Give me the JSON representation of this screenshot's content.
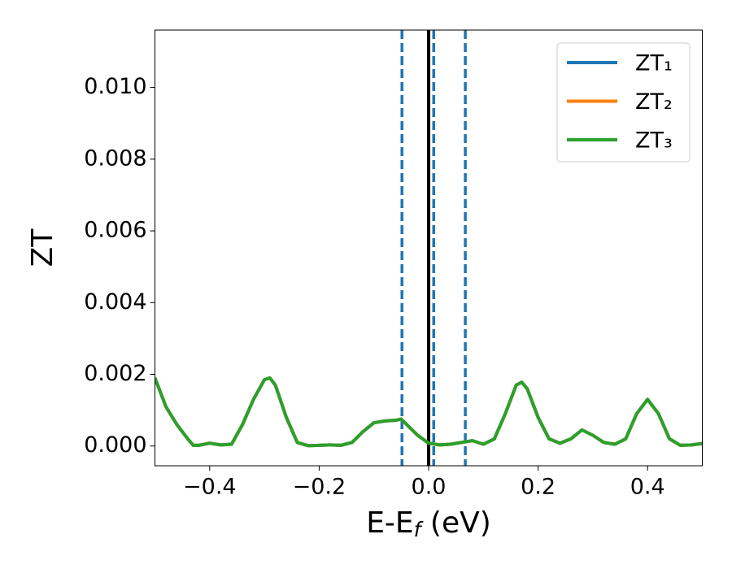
{
  "chart_data": {
    "type": "line",
    "xlabel": [
      "E-E",
      "f",
      " (eV)"
    ],
    "ylabel": "ZT",
    "x": [
      -0.5,
      -0.48,
      -0.46,
      -0.44,
      -0.43,
      -0.42,
      -0.4,
      -0.38,
      -0.36,
      -0.34,
      -0.32,
      -0.3,
      -0.29,
      -0.28,
      -0.26,
      -0.24,
      -0.22,
      -0.2,
      -0.18,
      -0.16,
      -0.14,
      -0.12,
      -0.1,
      -0.08,
      -0.06,
      -0.05,
      -0.04,
      -0.02,
      0,
      0.02,
      0.04,
      0.06,
      0.08,
      0.1,
      0.12,
      0.14,
      0.16,
      0.17,
      0.18,
      0.2,
      0.22,
      0.24,
      0.26,
      0.28,
      0.3,
      0.32,
      0.34,
      0.36,
      0.38,
      0.4,
      0.42,
      0.44,
      0.46,
      0.48,
      0.5
    ],
    "series": [
      {
        "name": "ZT₁",
        "color": "#1f77b4",
        "values": [
          0.0019,
          0.0011,
          0.0006,
          0.0002,
          2e-05,
          2e-05,
          8e-05,
          3e-05,
          5e-05,
          0.0006,
          0.0013,
          0.00185,
          0.0019,
          0.0017,
          0.0008,
          0.0001,
          1e-05,
          2e-05,
          3e-05,
          2e-05,
          0.0001,
          0.0004,
          0.00065,
          0.0007,
          0.00072,
          0.00075,
          0.0006,
          0.0003,
          8e-05,
          3e-05,
          5e-05,
          0.0001,
          0.00015,
          5e-05,
          0.0002,
          0.0009,
          0.0017,
          0.00178,
          0.0016,
          0.0008,
          0.0002,
          8e-05,
          0.0002,
          0.00045,
          0.0003,
          0.0001,
          5e-05,
          0.0002,
          0.0009,
          0.0013,
          0.0009,
          0.0002,
          2e-05,
          3e-05,
          7e-05
        ]
      },
      {
        "name": "ZT₂",
        "color": "#ff7f0e",
        "values": [
          0.0019,
          0.0011,
          0.0006,
          0.0002,
          2e-05,
          2e-05,
          8e-05,
          3e-05,
          5e-05,
          0.0006,
          0.0013,
          0.00185,
          0.0019,
          0.0017,
          0.0008,
          0.0001,
          1e-05,
          2e-05,
          3e-05,
          2e-05,
          0.0001,
          0.0004,
          0.00065,
          0.0007,
          0.00072,
          0.00075,
          0.0006,
          0.0003,
          8e-05,
          3e-05,
          5e-05,
          0.0001,
          0.00015,
          5e-05,
          0.0002,
          0.0009,
          0.0017,
          0.00178,
          0.0016,
          0.0008,
          0.0002,
          8e-05,
          0.0002,
          0.00045,
          0.0003,
          0.0001,
          5e-05,
          0.0002,
          0.0009,
          0.0013,
          0.0009,
          0.0002,
          2e-05,
          3e-05,
          7e-05
        ]
      },
      {
        "name": "ZT₃",
        "color": "#2ca02c",
        "values": [
          0.0019,
          0.0011,
          0.0006,
          0.0002,
          2e-05,
          2e-05,
          8e-05,
          3e-05,
          5e-05,
          0.0006,
          0.0013,
          0.00185,
          0.0019,
          0.0017,
          0.0008,
          0.0001,
          1e-05,
          2e-05,
          3e-05,
          2e-05,
          0.0001,
          0.0004,
          0.00065,
          0.0007,
          0.00072,
          0.00075,
          0.0006,
          0.0003,
          8e-05,
          3e-05,
          5e-05,
          0.0001,
          0.00015,
          5e-05,
          0.0002,
          0.0009,
          0.0017,
          0.00178,
          0.0016,
          0.0008,
          0.0002,
          8e-05,
          0.0002,
          0.00045,
          0.0003,
          0.0001,
          5e-05,
          0.0002,
          0.0009,
          0.0013,
          0.0009,
          0.0002,
          2e-05,
          3e-05,
          7e-05
        ]
      }
    ],
    "vlines": [
      {
        "x": -0.0487,
        "color": "#1f77b4",
        "style": "dashed"
      },
      {
        "x": 0,
        "color": "#000000",
        "style": "solid"
      },
      {
        "x": 0.0093,
        "color": "#1f77b4",
        "style": "dashed"
      },
      {
        "x": 0.067,
        "color": "#1f77b4",
        "style": "dashed"
      }
    ],
    "xlim": [
      -0.5,
      0.5
    ],
    "ylim": [
      -0.00055,
      0.0116
    ],
    "xticks": [
      {
        "value": -0.4,
        "label": "−0.4"
      },
      {
        "value": -0.2,
        "label": "−0.2"
      },
      {
        "value": 0,
        "label": "0.0"
      },
      0.2,
      0.4
    ],
    "yticks": [
      {
        "value": 0,
        "label": "0.000"
      },
      {
        "value": 0.002,
        "label": "0.002"
      },
      {
        "value": 0.004,
        "label": "0.004"
      },
      {
        "value": 0.006,
        "label": "0.006"
      },
      {
        "value": 0.008,
        "label": "0.008"
      },
      {
        "value": 0.01,
        "label": "0.010"
      }
    ],
    "legend": "upper right",
    "grid": false
  }
}
